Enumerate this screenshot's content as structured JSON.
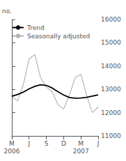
{
  "chart_data": {
    "type": "line",
    "y_label": "no.",
    "x": [
      0,
      1,
      2,
      3,
      4,
      5,
      6,
      7,
      8,
      9,
      10,
      11,
      12,
      13,
      14,
      15
    ],
    "xlim": [
      0,
      15
    ],
    "xticks": [
      {
        "value": 0,
        "label": "M"
      },
      {
        "value": 3,
        "label": "J"
      },
      {
        "value": 6,
        "label": "S"
      },
      {
        "value": 9,
        "label": "D"
      },
      {
        "value": 12,
        "label": "M"
      },
      {
        "value": 15,
        "label": "J"
      }
    ],
    "ylim": [
      11000,
      16000
    ],
    "yticks": [
      11000,
      12000,
      13000,
      14000,
      15000,
      16000
    ],
    "series": [
      {
        "name": "Trend",
        "color": "#000000",
        "values": [
          12700,
          12780,
          12880,
          13020,
          13130,
          13200,
          13170,
          13060,
          12900,
          12760,
          12650,
          12620,
          12630,
          12660,
          12710,
          12760
        ]
      },
      {
        "name": "Seasonally adjusted",
        "color": "#b0b0b0",
        "values": [
          12700,
          12500,
          13200,
          14300,
          14500,
          13500,
          13100,
          12900,
          12350,
          12150,
          12750,
          13500,
          13650,
          12750,
          12000,
          12250
        ]
      }
    ],
    "annotations": [
      {
        "text": "2006",
        "x": 0
      },
      {
        "text": "2007",
        "x": 12
      }
    ],
    "legend": "upper left",
    "grid": false
  }
}
